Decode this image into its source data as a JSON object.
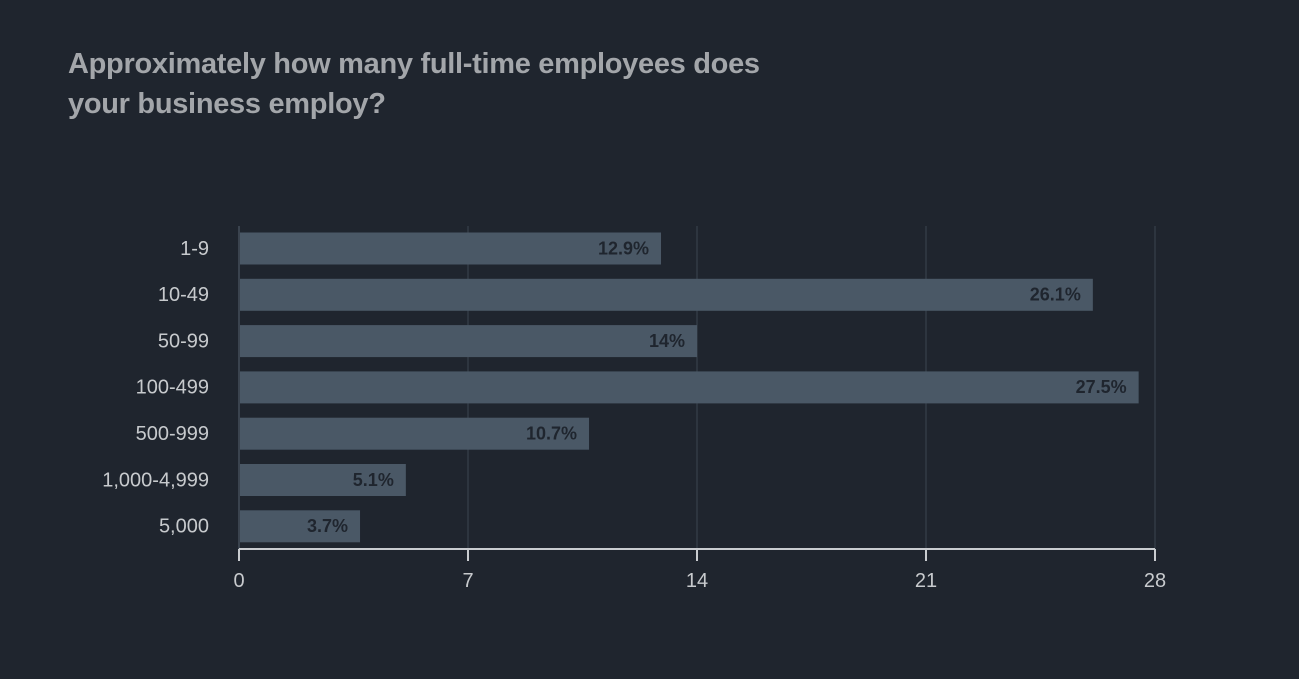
{
  "page": {
    "background": "#1f252e",
    "title": "Approximately how many full-time employees does your business employ?"
  },
  "chart_data": {
    "type": "bar",
    "orientation": "horizontal",
    "title": "Approximately how many full-time employees does your business employ?",
    "categories": [
      "1-9",
      "10-49",
      "50-99",
      "100-499",
      "500-999",
      "1,000-4,999",
      "5,000"
    ],
    "values": [
      12.9,
      26.1,
      14,
      27.5,
      10.7,
      5.1,
      3.7
    ],
    "value_labels": [
      "12.9%",
      "26.1%",
      "14%",
      "27.5%",
      "10.7%",
      "5.1%",
      "3.7%"
    ],
    "xlim": [
      0,
      28
    ],
    "xticks": [
      0,
      7,
      14,
      21,
      28
    ],
    "xlabel": "",
    "ylabel": "",
    "grid": "vertical",
    "legend": "none",
    "colors": {
      "bar": "#4a5866",
      "grid": "#323b45",
      "axis": "#c9ccd0",
      "text": "#c7cacd",
      "title": "#a3a6aa",
      "value_label": "#1f252e"
    }
  }
}
